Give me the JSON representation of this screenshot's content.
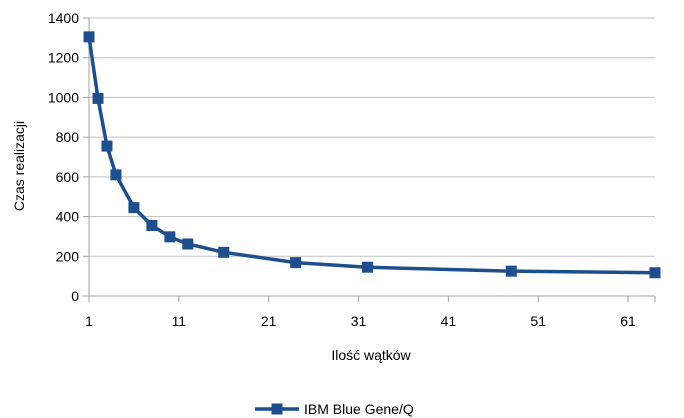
{
  "chart_data": {
    "type": "line",
    "xlabel": "Ilość wątków",
    "ylabel": "Czas realizacji",
    "xlim": [
      1,
      64
    ],
    "ylim": [
      0,
      1400
    ],
    "x_ticks": [
      1,
      11,
      21,
      31,
      41,
      51,
      61
    ],
    "y_ticks": [
      0,
      200,
      400,
      600,
      800,
      1000,
      1200,
      1400
    ],
    "grid": "horizontal",
    "legend_position": "bottom",
    "series": [
      {
        "name": "IBM Blue Gene/Q",
        "color": "#1f4e8c",
        "marker": "square",
        "x": [
          1,
          2,
          3,
          4,
          6,
          8,
          10,
          12,
          16,
          24,
          32,
          48,
          64
        ],
        "y": [
          1305,
          995,
          755,
          610,
          445,
          355,
          298,
          262,
          220,
          168,
          145,
          125,
          117
        ]
      }
    ]
  }
}
